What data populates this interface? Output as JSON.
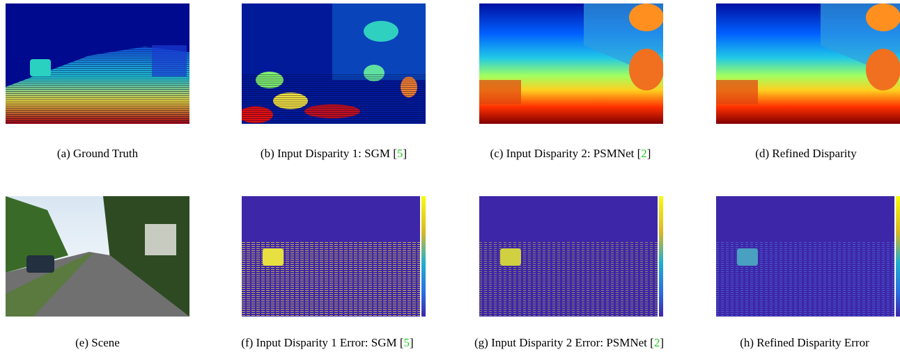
{
  "figure": {
    "panels": [
      {
        "caption": "(a) Ground Truth"
      },
      {
        "caption": "(b) Input Disparity 1: SGM [",
        "ref": "5",
        "caption_end": "]"
      },
      {
        "caption": "(c) Input Disparity 2: PSMNet [",
        "ref": "2",
        "caption_end": "]"
      },
      {
        "caption": "(d) Refined Disparity"
      },
      {
        "caption": "(e) Scene"
      },
      {
        "caption": "(f) Input Disparity 1 Error: SGM [",
        "ref": "5",
        "caption_end": "]"
      },
      {
        "caption": "(g) Input Disparity 2 Error: PSMNet [",
        "ref": "2",
        "caption_end": "]"
      },
      {
        "caption": "(h) Refined Disparity Error"
      }
    ]
  }
}
